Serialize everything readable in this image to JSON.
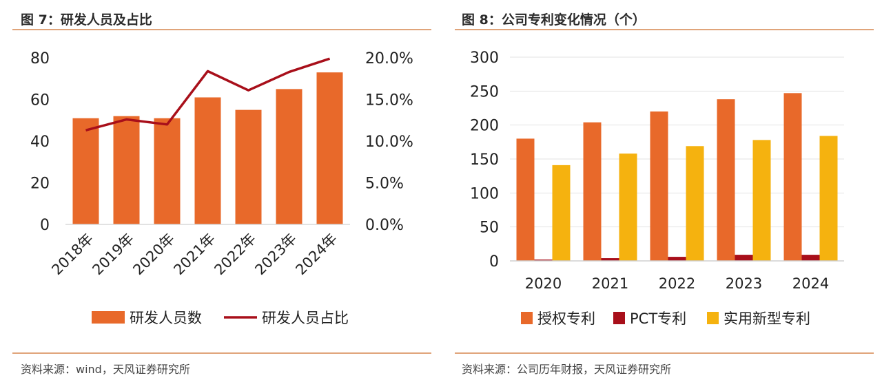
{
  "colors": {
    "orange": "#E8692A",
    "darkred": "#A80F1A",
    "yellow": "#F5B20F",
    "rule": "#E0A47A"
  },
  "left": {
    "fig_title": "图 7：研发人员及占比",
    "source": "资料来源：wind，天风证券研究所",
    "chart_data": {
      "type": "bar",
      "categories": [
        "2018年",
        "2019年",
        "2020年",
        "2021年",
        "2022年",
        "2023年",
        "2024年"
      ],
      "y_ticks": [
        "0",
        "20",
        "40",
        "60",
        "80"
      ],
      "y2_ticks": [
        "0.0%",
        "5.0%",
        "10.0%",
        "15.0%",
        "20.0%"
      ],
      "ylim": [
        0,
        80
      ],
      "y2lim": [
        0,
        20
      ],
      "grid": false,
      "legend_position": "bottom",
      "series": [
        {
          "name": "研发人员数",
          "type": "bar",
          "axis": "left",
          "values": [
            51,
            52,
            51,
            61,
            55,
            65,
            73
          ]
        },
        {
          "name": "研发人员占比",
          "type": "line",
          "axis": "right",
          "values": [
            11.3,
            12.6,
            12.0,
            18.4,
            16.1,
            18.3,
            19.9
          ]
        }
      ]
    }
  },
  "right": {
    "fig_title": "图 8：公司专利变化情况（个）",
    "source": "资料来源：公司历年财报，天风证券研究所",
    "chart_data": {
      "type": "bar",
      "categories": [
        "2020",
        "2021",
        "2022",
        "2023",
        "2024"
      ],
      "y_ticks": [
        "0",
        "50",
        "100",
        "150",
        "200",
        "250",
        "300"
      ],
      "ylim": [
        0,
        300
      ],
      "grid": true,
      "legend_position": "bottom",
      "series": [
        {
          "name": "授权专利",
          "values": [
            180,
            204,
            220,
            238,
            247
          ]
        },
        {
          "name": "PCT专利",
          "values": [
            2,
            4,
            6,
            9,
            9
          ]
        },
        {
          "name": "实用新型专利",
          "values": [
            141,
            158,
            169,
            178,
            184
          ]
        }
      ]
    }
  }
}
